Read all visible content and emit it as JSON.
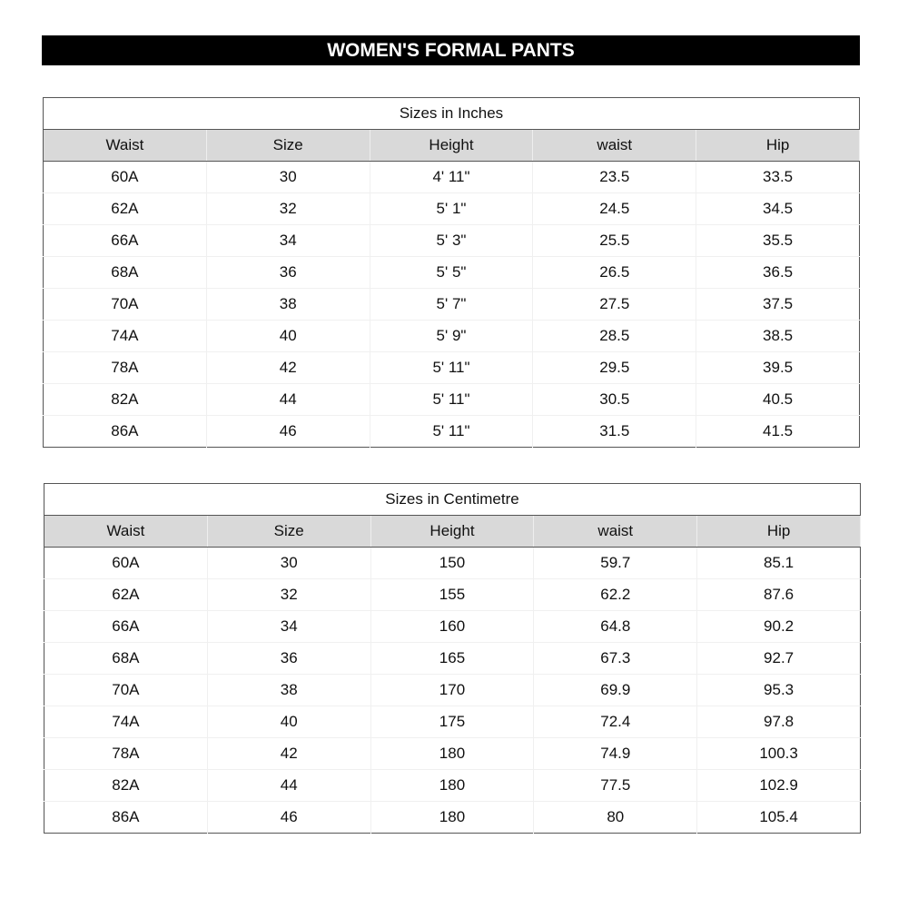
{
  "title": "WOMEN'S FORMAL PANTS",
  "tables": [
    {
      "caption": "Sizes in Inches",
      "headers": [
        "Waist",
        "Size",
        "Height",
        "waist",
        "Hip"
      ],
      "rows": [
        [
          "60A",
          "30",
          "4' 11\"",
          "23.5",
          "33.5"
        ],
        [
          "62A",
          "32",
          "5' 1\"",
          "24.5",
          "34.5"
        ],
        [
          "66A",
          "34",
          "5' 3\"",
          "25.5",
          "35.5"
        ],
        [
          "68A",
          "36",
          "5' 5\"",
          "26.5",
          "36.5"
        ],
        [
          "70A",
          "38",
          "5' 7\"",
          "27.5",
          "37.5"
        ],
        [
          "74A",
          "40",
          "5' 9\"",
          "28.5",
          "38.5"
        ],
        [
          "78A",
          "42",
          "5' 11\"",
          "29.5",
          "39.5"
        ],
        [
          "82A",
          "44",
          "5' 11\"",
          "30.5",
          "40.5"
        ],
        [
          "86A",
          "46",
          "5' 11\"",
          "31.5",
          "41.5"
        ]
      ]
    },
    {
      "caption": "Sizes in Centimetre",
      "headers": [
        "Waist",
        "Size",
        "Height",
        "waist",
        "Hip"
      ],
      "rows": [
        [
          "60A",
          "30",
          "150",
          "59.7",
          "85.1"
        ],
        [
          "62A",
          "32",
          "155",
          "62.2",
          "87.6"
        ],
        [
          "66A",
          "34",
          "160",
          "64.8",
          "90.2"
        ],
        [
          "68A",
          "36",
          "165",
          "67.3",
          "92.7"
        ],
        [
          "70A",
          "38",
          "170",
          "69.9",
          "95.3"
        ],
        [
          "74A",
          "40",
          "175",
          "72.4",
          "97.8"
        ],
        [
          "78A",
          "42",
          "180",
          "74.9",
          "100.3"
        ],
        [
          "82A",
          "44",
          "180",
          "77.5",
          "102.9"
        ],
        [
          "86A",
          "46",
          "180",
          "80",
          "105.4"
        ]
      ]
    }
  ]
}
